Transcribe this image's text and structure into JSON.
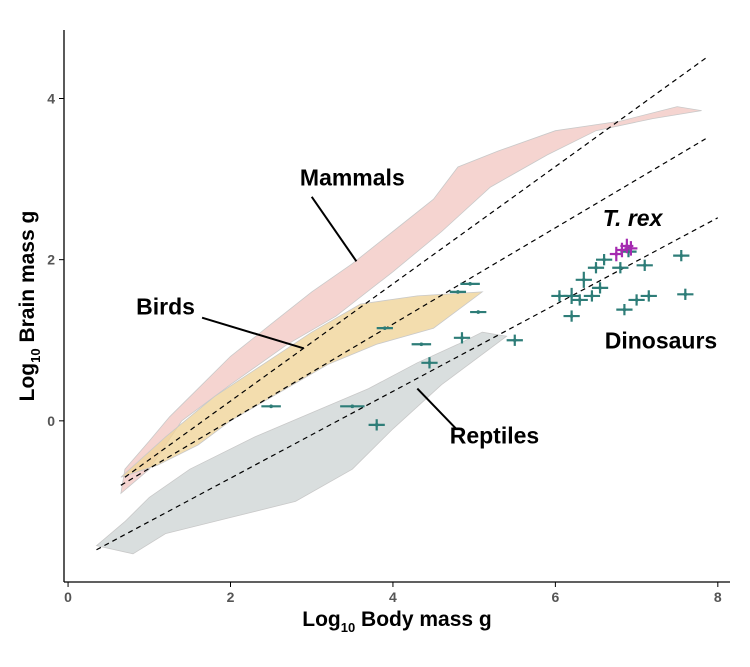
{
  "chart_data": {
    "type": "scatter",
    "xlabel": {
      "base": "Log",
      "sub": "10",
      "rest": " Body mass g"
    },
    "ylabel": {
      "base": "Log",
      "sub": "10",
      "rest": " Brain mass g"
    },
    "xlim": [
      -0.05,
      8.15
    ],
    "ylim": [
      -2.0,
      4.85
    ],
    "xticks": [
      0,
      2,
      4,
      6,
      8
    ],
    "yticks": [
      0,
      2,
      4
    ],
    "xtick_labels": [
      "0",
      "2",
      "4",
      "6",
      "8"
    ],
    "ytick_labels": [
      "0",
      "2",
      "4"
    ],
    "grid": false,
    "regions": [
      {
        "name": "Mammals",
        "color": "#f2c9c4",
        "polygon": [
          [
            0.65,
            -0.9
          ],
          [
            0.7,
            -0.6
          ],
          [
            1.0,
            -0.25
          ],
          [
            1.25,
            0.05
          ],
          [
            1.5,
            0.3
          ],
          [
            2.0,
            0.8
          ],
          [
            2.5,
            1.2
          ],
          [
            3.0,
            1.6
          ],
          [
            3.5,
            1.95
          ],
          [
            4.0,
            2.35
          ],
          [
            4.5,
            2.75
          ],
          [
            4.8,
            3.15
          ],
          [
            5.3,
            3.35
          ],
          [
            6.0,
            3.6
          ],
          [
            6.8,
            3.72
          ],
          [
            7.5,
            3.9
          ],
          [
            7.8,
            3.85
          ],
          [
            7.2,
            3.75
          ],
          [
            6.5,
            3.6
          ],
          [
            5.9,
            3.3
          ],
          [
            5.2,
            2.9
          ],
          [
            4.6,
            2.35
          ],
          [
            4.0,
            1.85
          ],
          [
            3.3,
            1.3
          ],
          [
            2.7,
            0.95
          ],
          [
            2.0,
            0.45
          ],
          [
            1.4,
            0.0
          ],
          [
            1.0,
            -0.6
          ],
          [
            0.65,
            -0.9
          ]
        ]
      },
      {
        "name": "Birds",
        "color": "#f0d59a",
        "polygon": [
          [
            0.65,
            -0.7
          ],
          [
            1.2,
            -0.2
          ],
          [
            1.8,
            0.3
          ],
          [
            2.4,
            0.7
          ],
          [
            3.0,
            1.1
          ],
          [
            3.6,
            1.45
          ],
          [
            4.3,
            1.55
          ],
          [
            5.1,
            1.6
          ],
          [
            4.5,
            1.15
          ],
          [
            3.8,
            0.95
          ],
          [
            3.2,
            0.7
          ],
          [
            2.6,
            0.35
          ],
          [
            2.0,
            0.0
          ],
          [
            1.6,
            -0.3
          ],
          [
            1.1,
            -0.55
          ],
          [
            0.65,
            -0.7
          ]
        ]
      },
      {
        "name": "Reptiles",
        "color": "#cfd6d6",
        "polygon": [
          [
            0.35,
            -1.55
          ],
          [
            0.7,
            -1.25
          ],
          [
            1.0,
            -0.95
          ],
          [
            1.5,
            -0.6
          ],
          [
            2.3,
            -0.2
          ],
          [
            3.0,
            0.1
          ],
          [
            3.7,
            0.4
          ],
          [
            4.3,
            0.72
          ],
          [
            4.8,
            0.95
          ],
          [
            5.1,
            1.1
          ],
          [
            5.4,
            1.05
          ],
          [
            4.6,
            0.45
          ],
          [
            4.0,
            -0.1
          ],
          [
            3.5,
            -0.6
          ],
          [
            2.8,
            -1.0
          ],
          [
            2.0,
            -1.2
          ],
          [
            1.2,
            -1.4
          ],
          [
            0.8,
            -1.65
          ],
          [
            0.35,
            -1.55
          ]
        ]
      }
    ],
    "regression_lines": [
      {
        "x": [
          0.7,
          7.85
        ],
        "y": [
          -0.7,
          4.5
        ]
      },
      {
        "x": [
          0.65,
          7.85
        ],
        "y": [
          -0.8,
          3.5
        ]
      },
      {
        "x": [
          0.35,
          8.0
        ],
        "y": [
          -1.6,
          2.52
        ]
      }
    ],
    "points": [
      {
        "group": "Dinosaurs",
        "x": 2.5,
        "y": 0.18,
        "xerr": 0.12,
        "yerr": 0.02
      },
      {
        "group": "Dinosaurs",
        "x": 3.5,
        "y": 0.18,
        "xerr": 0.15,
        "yerr": 0.02
      },
      {
        "group": "Dinosaurs",
        "x": 3.8,
        "y": -0.05,
        "xerr": 0.1,
        "yerr": 0.07
      },
      {
        "group": "Dinosaurs",
        "x": 3.9,
        "y": 1.15,
        "xerr": 0.1,
        "yerr": 0.02
      },
      {
        "group": "Dinosaurs",
        "x": 4.35,
        "y": 0.95,
        "xerr": 0.12,
        "yerr": 0.02
      },
      {
        "group": "Dinosaurs",
        "x": 4.45,
        "y": 0.72,
        "xerr": 0.1,
        "yerr": 0.07
      },
      {
        "group": "Dinosaurs",
        "x": 4.8,
        "y": 1.6,
        "xerr": 0.1,
        "yerr": 0.02
      },
      {
        "group": "Dinosaurs",
        "x": 4.85,
        "y": 1.03,
        "xerr": 0.1,
        "yerr": 0.07
      },
      {
        "group": "Dinosaurs",
        "x": 4.95,
        "y": 1.7,
        "xerr": 0.12,
        "yerr": 0.02
      },
      {
        "group": "Dinosaurs",
        "x": 5.05,
        "y": 1.35,
        "xerr": 0.1,
        "yerr": 0.02
      },
      {
        "group": "Dinosaurs",
        "x": 5.5,
        "y": 1.0,
        "xerr": 0.1,
        "yerr": 0.07
      },
      {
        "group": "Dinosaurs",
        "x": 6.05,
        "y": 1.55,
        "xerr": 0.1,
        "yerr": 0.07
      },
      {
        "group": "Dinosaurs",
        "x": 6.2,
        "y": 1.55,
        "xerr": 0.1,
        "yerr": 0.1
      },
      {
        "group": "Dinosaurs",
        "x": 6.2,
        "y": 1.3,
        "xerr": 0.1,
        "yerr": 0.07
      },
      {
        "group": "Dinosaurs",
        "x": 6.3,
        "y": 1.5,
        "xerr": 0.1,
        "yerr": 0.07
      },
      {
        "group": "Dinosaurs",
        "x": 6.35,
        "y": 1.75,
        "xerr": 0.1,
        "yerr": 0.1
      },
      {
        "group": "Dinosaurs",
        "x": 6.45,
        "y": 1.55,
        "xerr": 0.1,
        "yerr": 0.07
      },
      {
        "group": "Dinosaurs",
        "x": 6.5,
        "y": 1.9,
        "xerr": 0.1,
        "yerr": 0.07
      },
      {
        "group": "Dinosaurs",
        "x": 6.55,
        "y": 1.65,
        "xerr": 0.1,
        "yerr": 0.07
      },
      {
        "group": "Dinosaurs",
        "x": 6.6,
        "y": 2.0,
        "xerr": 0.1,
        "yerr": 0.07
      },
      {
        "group": "Dinosaurs",
        "x": 6.8,
        "y": 1.9,
        "xerr": 0.1,
        "yerr": 0.07
      },
      {
        "group": "Dinosaurs",
        "x": 6.85,
        "y": 1.38,
        "xerr": 0.1,
        "yerr": 0.07
      },
      {
        "group": "Dinosaurs",
        "x": 6.9,
        "y": 2.1,
        "xerr": 0.1,
        "yerr": 0.07
      },
      {
        "group": "Dinosaurs",
        "x": 7.0,
        "y": 1.5,
        "xerr": 0.1,
        "yerr": 0.07
      },
      {
        "group": "Dinosaurs",
        "x": 7.1,
        "y": 1.93,
        "xerr": 0.1,
        "yerr": 0.07
      },
      {
        "group": "Dinosaurs",
        "x": 7.15,
        "y": 1.55,
        "xerr": 0.1,
        "yerr": 0.07
      },
      {
        "group": "Dinosaurs",
        "x": 7.55,
        "y": 2.05,
        "xerr": 0.1,
        "yerr": 0.07
      },
      {
        "group": "Dinosaurs",
        "x": 7.6,
        "y": 1.57,
        "xerr": 0.1,
        "yerr": 0.07
      },
      {
        "group": "T. rex",
        "x": 6.75,
        "y": 2.07,
        "xerr": 0.08,
        "yerr": 0.09
      },
      {
        "group": "T. rex",
        "x": 6.82,
        "y": 2.12,
        "xerr": 0.08,
        "yerr": 0.09
      },
      {
        "group": "T. rex",
        "x": 6.88,
        "y": 2.17,
        "xerr": 0.08,
        "yerr": 0.09
      },
      {
        "group": "T. rex",
        "x": 6.93,
        "y": 2.14,
        "xerr": 0.08,
        "yerr": 0.09
      }
    ],
    "point_colors": {
      "Dinosaurs": "#2e7d78",
      "T. rex": "#a52ab0"
    },
    "annotations": [
      {
        "text": "Mammals",
        "x": 3.5,
        "y": 2.92,
        "pointer": [
          [
            3.0,
            2.78
          ],
          [
            3.55,
            1.98
          ]
        ]
      },
      {
        "text": "Birds",
        "x": 1.2,
        "y": 1.32,
        "pointer": [
          [
            1.65,
            1.28
          ],
          [
            2.9,
            0.9
          ]
        ]
      },
      {
        "text": "Reptiles",
        "x": 5.25,
        "y": -0.28,
        "pointer": [
          [
            4.78,
            -0.1
          ],
          [
            4.3,
            0.4
          ]
        ]
      },
      {
        "text": "Dinosaurs",
        "x": 7.3,
        "y": 0.9,
        "pointer": null
      },
      {
        "text": "T. rex",
        "x": 6.95,
        "y": 2.42,
        "pointer": null,
        "italic": true
      }
    ]
  }
}
